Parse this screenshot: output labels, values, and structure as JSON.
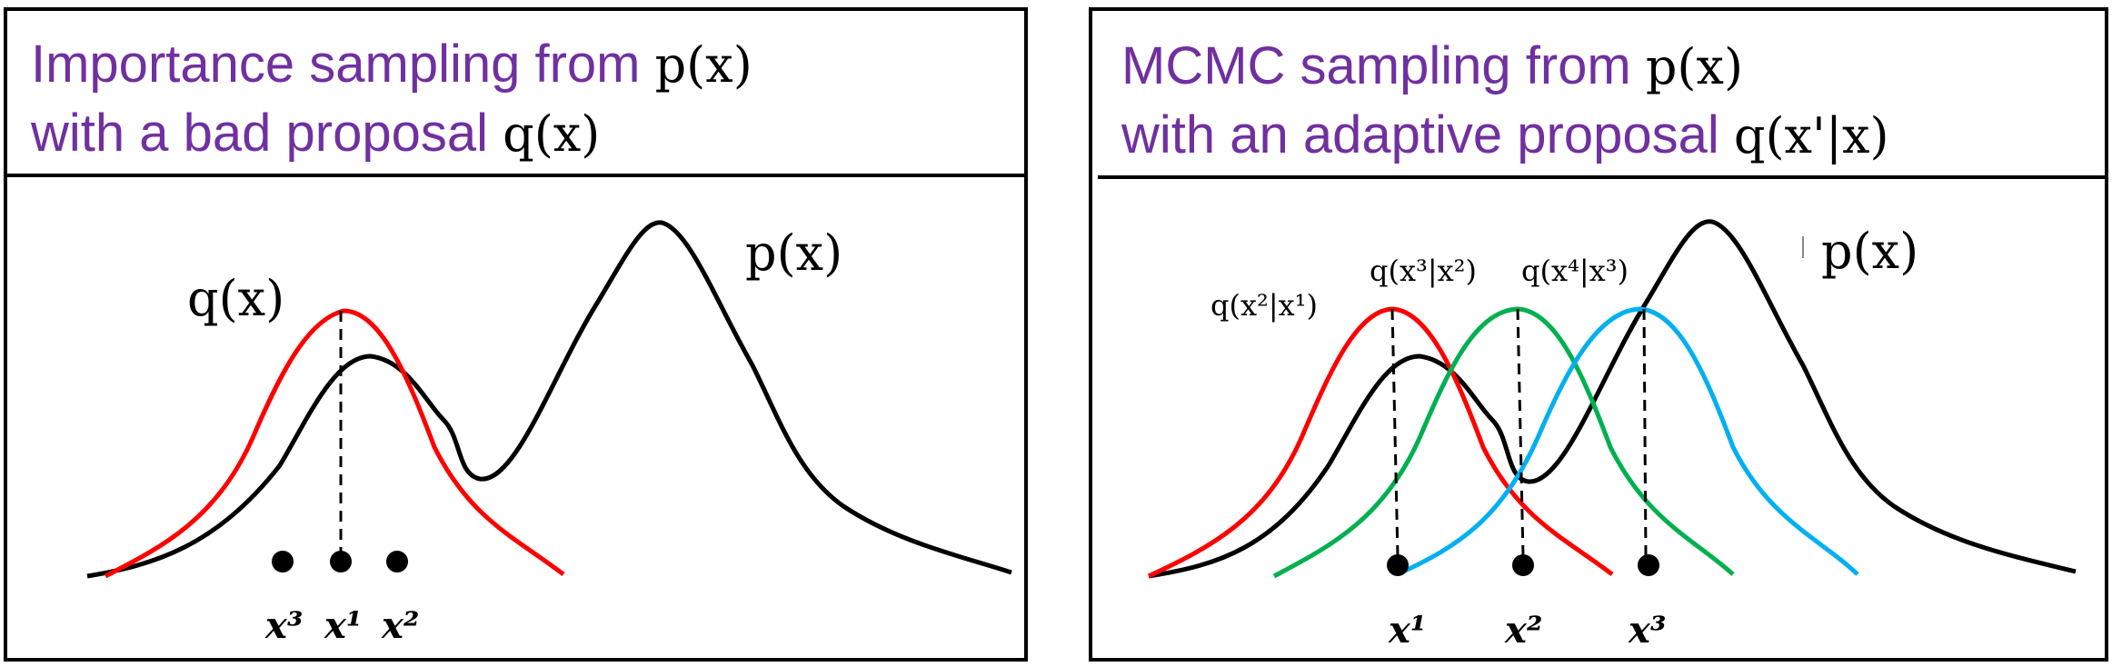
{
  "left": {
    "title_line1_text": "Importance sampling from ",
    "title_line1_math": "p(x)",
    "title_line2_text": "with a bad proposal ",
    "title_line2_math": "q(x)",
    "label_p": "p(x)",
    "label_q": "q(x)",
    "sample_labels": [
      "x³",
      "x¹",
      "x²"
    ]
  },
  "right": {
    "title_line1_text": "MCMC sampling from ",
    "title_line1_math": "p(x)",
    "title_line2_text": "with an adaptive proposal ",
    "title_line2_math": "q(x'|x)",
    "label_p": "p(x)",
    "proposal_labels": [
      "q(x²|x¹)",
      "q(x³|x²)",
      "q(x⁴|x³)"
    ],
    "sample_labels": [
      "x¹",
      "x²",
      "x³"
    ]
  },
  "colors": {
    "title": "#7030a0",
    "target": "#000000",
    "proposal_1": "#ff0000",
    "proposal_2": "#00b050",
    "proposal_3": "#00b0f0"
  }
}
